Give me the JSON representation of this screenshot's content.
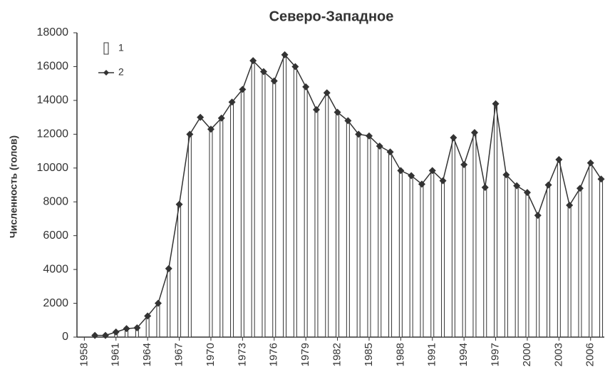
{
  "chart_data": {
    "type": "bar",
    "title": "Северо-Западное",
    "y_label": "Численность (голов)",
    "x": [
      1959,
      1960,
      1961,
      1962,
      1963,
      1964,
      1965,
      1966,
      1967,
      1968,
      1969,
      1970,
      1971,
      1972,
      1973,
      1974,
      1975,
      1976,
      1977,
      1978,
      1979,
      1980,
      1981,
      1982,
      1983,
      1984,
      1985,
      1986,
      1987,
      1988,
      1989,
      1990,
      1991,
      1992,
      1993,
      1994,
      1995,
      1996,
      1997,
      1998,
      1999,
      2000,
      2001,
      2002,
      2003,
      2004,
      2005,
      2006,
      2007
    ],
    "series": [
      {
        "name": "1",
        "type": "bar",
        "color": "#ffffff",
        "values": [
          100,
          100,
          300,
          500,
          550,
          1250,
          2000,
          4050,
          7850,
          12000,
          null,
          12300,
          12950,
          13900,
          14650,
          16350,
          15700,
          15150,
          16700,
          16000,
          14800,
          13450,
          14450,
          13300,
          12800,
          12000,
          11900,
          11300,
          10950,
          9850,
          9550,
          9050,
          9850,
          9250,
          11800,
          10200,
          12100,
          8850,
          13800,
          9600,
          8950,
          8550,
          7200,
          9000,
          10500,
          7800,
          8800,
          10300,
          9350
        ]
      },
      {
        "name": "2",
        "type": "line",
        "color": "#333333",
        "values": [
          100,
          100,
          300,
          500,
          550,
          1250,
          2000,
          4050,
          7850,
          12000,
          13000,
          12300,
          12950,
          13900,
          14650,
          16350,
          15700,
          15150,
          16700,
          16000,
          14800,
          13450,
          14450,
          13300,
          12800,
          12000,
          11900,
          11300,
          10950,
          9850,
          9550,
          9050,
          9850,
          9250,
          11800,
          10200,
          12100,
          8850,
          13800,
          9600,
          8950,
          8550,
          7200,
          9000,
          10500,
          7800,
          8800,
          10300,
          9350
        ]
      }
    ],
    "xlim": [
      1957.3,
      2007.3
    ],
    "xticks": [
      1958,
      1961,
      1964,
      1967,
      1970,
      1973,
      1976,
      1979,
      1982,
      1985,
      1988,
      1991,
      1994,
      1997,
      2000,
      2003,
      2006
    ],
    "ylim": [
      0,
      18000
    ],
    "yticks": [
      0,
      2000,
      4000,
      6000,
      8000,
      10000,
      12000,
      14000,
      16000,
      18000
    ],
    "legend": "upper left"
  }
}
